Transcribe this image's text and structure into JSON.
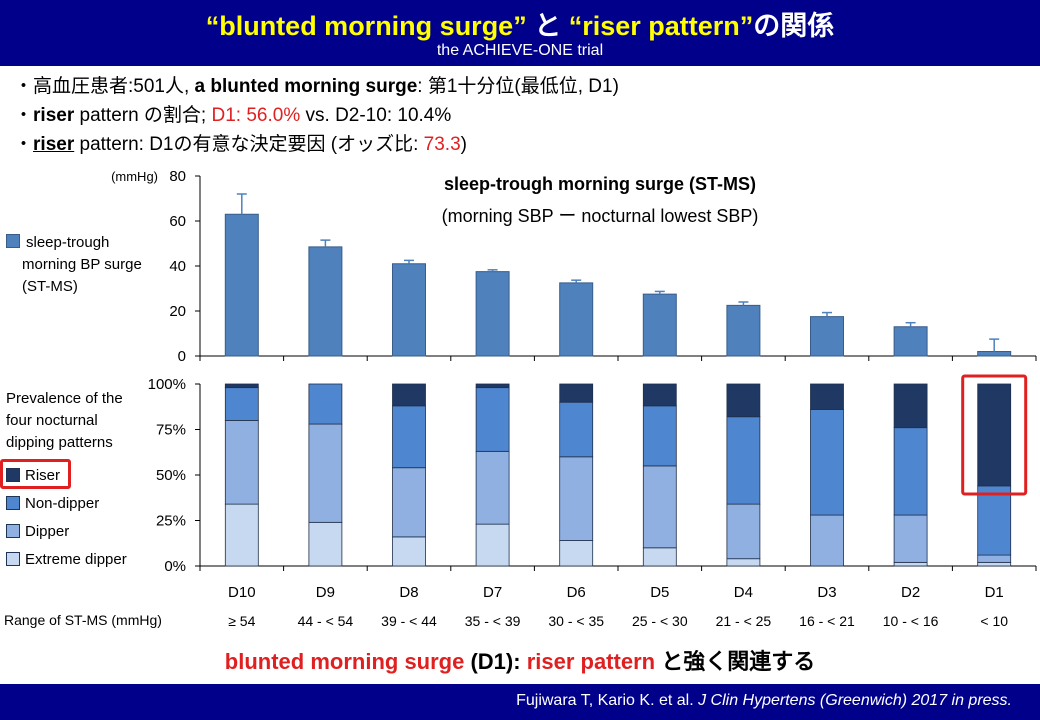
{
  "header": {
    "title_q1": "“blunted morning surge”",
    "title_to": "と",
    "title_q2": "“riser pattern”",
    "title_rel": "の関係",
    "subtitle": "the ACHIEVE-ONE trial"
  },
  "bullets": {
    "b1_prefix": "・高血圧患者:501人,",
    "b1_bold": "a blunted morning surge",
    "b1_suffix": ": 第1十分位(最低位, D1)",
    "b2_bold": "riser",
    "b2_mid": " pattern の割合;",
    "b2_red": "D1: 56.0%",
    "b2_suffix": " vs. D2-10: 10.4%",
    "b3_bold": "riser",
    "b3_mid": " pattern: D1の有意な決定要因 (オッズ比: ",
    "b3_red": "73.3",
    "b3_end": ")"
  },
  "legend_top": {
    "line1": "sleep-trough",
    "line2": "morning BP surge",
    "line3": "(ST-MS)"
  },
  "annotation": {
    "title": "sleep-trough morning surge (ST-MS)",
    "subtitle": "(morning SBP  ー  nocturnal lowest SBP)"
  },
  "prevalence_title": {
    "line1": "Prevalence of the",
    "line2": "four nocturnal",
    "line3": "dipping patterns"
  },
  "range_row_label": "Range of ST-MS (mmHg)",
  "conclusion": {
    "red1": "blunted morning surge",
    "mid": " (D1): ",
    "red2": "riser pattern",
    "end": " と強く関連する"
  },
  "footer": {
    "authors": "Fujiwara T, Kario K. et al. ",
    "journal": "J Clin Hypertens (Greenwich) 2017 in press."
  },
  "colors": {
    "header_bg": "#00008b",
    "title_yellow": "#ffff00",
    "bar_blue": "#4f81bd",
    "riser": "#1f3864",
    "non_dipper": "#4f86d0",
    "dipper": "#8fb0e0",
    "extreme_dipper": "#c6d9f1",
    "highlight_red": "#e02020"
  },
  "chart_data": [
    {
      "type": "bar",
      "categories": [
        "D10",
        "D9",
        "D8",
        "D7",
        "D6",
        "D5",
        "D4",
        "D3",
        "D2",
        "D1"
      ],
      "values": [
        63,
        48.5,
        41,
        37.5,
        32.5,
        27.5,
        22.5,
        17.5,
        13,
        2
      ],
      "error": [
        9,
        3,
        1.5,
        0.8,
        1.2,
        1.2,
        1.5,
        1.8,
        1.8,
        5.5
      ],
      "ylabel": "(mmHg)",
      "ylim": [
        0,
        80
      ],
      "yticks": [
        0,
        20,
        40,
        60,
        80
      ],
      "legend": "sleep-trough morning BP surge (ST-MS)"
    },
    {
      "type": "bar",
      "stacked": true,
      "categories": [
        "D10",
        "D9",
        "D8",
        "D7",
        "D6",
        "D5",
        "D4",
        "D3",
        "D2",
        "D1"
      ],
      "range_labels": [
        "≥ 54",
        "44 - < 54",
        "39 - < 44",
        "35 - < 39",
        "30 - < 35",
        "25 - < 30",
        "21 - < 25",
        "16 - < 21",
        "10 - < 16",
        "< 10"
      ],
      "ylim": [
        0,
        100
      ],
      "yticks": [
        "0%",
        "25%",
        "50%",
        "75%",
        "100%"
      ],
      "series": [
        {
          "name": "Extreme dipper",
          "values": [
            34,
            24,
            16,
            23,
            14,
            10,
            4,
            0,
            2,
            2
          ]
        },
        {
          "name": "Dipper",
          "values": [
            46,
            54,
            38,
            40,
            46,
            45,
            30,
            28,
            26,
            4
          ]
        },
        {
          "name": "Non-dipper",
          "values": [
            18,
            22,
            34,
            35,
            30,
            33,
            48,
            58,
            48,
            38
          ]
        },
        {
          "name": "Riser",
          "values": [
            2,
            0,
            12,
            2,
            10,
            12,
            18,
            14,
            24,
            56
          ]
        }
      ],
      "highlight_category": "D1"
    }
  ]
}
